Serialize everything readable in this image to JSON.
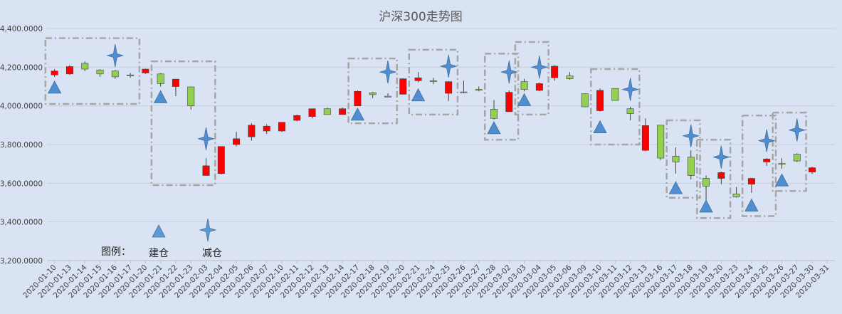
{
  "chart_data": {
    "type": "candlestick",
    "title": "沪深300走势图",
    "xlabel": "",
    "ylabel": "",
    "ylim": [
      3200,
      4400
    ],
    "yticks": [
      3200,
      3400,
      3600,
      3800,
      4000,
      4200,
      4400
    ],
    "ytick_labels": [
      "3,200.0000",
      "3,400.0000",
      "3,600.0000",
      "3,800.0000",
      "4,000.0000",
      "4,200.0000",
      "4,400.0000"
    ],
    "grid": true,
    "legend": {
      "position": "bottom-left",
      "title": "图例：",
      "entries": [
        {
          "label": "建仓",
          "marker": "triangle"
        },
        {
          "label": "减仓",
          "marker": "four-point-star"
        }
      ]
    },
    "colors": {
      "up": "#ff0000",
      "down": "#92d050",
      "marker": "#4f8ed1",
      "box": "#a6a6a6"
    },
    "candles": [
      {
        "date": "2020-01-10",
        "open": 4160,
        "close": 4180,
        "high": 4190,
        "low": 4150
      },
      {
        "date": "2020-01-13",
        "open": 4165,
        "close": 4203,
        "high": 4210,
        "low": 4160
      },
      {
        "date": "2020-01-14",
        "open": 4220,
        "close": 4190,
        "high": 4230,
        "low": 4180
      },
      {
        "date": "2020-01-15",
        "open": 4185,
        "close": 4165,
        "high": 4190,
        "low": 4150
      },
      {
        "date": "2020-01-16",
        "open": 4180,
        "close": 4150,
        "high": 4185,
        "low": 4140
      },
      {
        "date": "2020-01-17",
        "open": 4160,
        "close": 4155,
        "high": 4170,
        "low": 4145
      },
      {
        "date": "2020-01-20",
        "open": 4170,
        "close": 4190,
        "high": 4192,
        "low": 4165
      },
      {
        "date": "2020-01-21",
        "open": 4165,
        "close": 4115,
        "high": 4170,
        "low": 4100
      },
      {
        "date": "2020-01-22",
        "open": 4100,
        "close": 4138,
        "high": 4140,
        "low": 4050
      },
      {
        "date": "2020-01-23",
        "open": 4098,
        "close": 4000,
        "high": 4100,
        "low": 3980
      },
      {
        "date": "2020-02-03",
        "open": 3640,
        "close": 3690,
        "high": 3730,
        "low": 3640
      },
      {
        "date": "2020-02-04",
        "open": 3650,
        "close": 3790,
        "high": 3790,
        "low": 3645
      },
      {
        "date": "2020-02-05",
        "open": 3800,
        "close": 3830,
        "high": 3865,
        "low": 3790
      },
      {
        "date": "2020-02-06",
        "open": 3840,
        "close": 3900,
        "high": 3910,
        "low": 3820
      },
      {
        "date": "2020-02-07",
        "open": 3870,
        "close": 3895,
        "high": 3905,
        "low": 3855
      },
      {
        "date": "2020-02-10",
        "open": 3870,
        "close": 3915,
        "high": 3915,
        "low": 3865
      },
      {
        "date": "2020-02-11",
        "open": 3925,
        "close": 3950,
        "high": 3955,
        "low": 3920
      },
      {
        "date": "2020-02-12",
        "open": 3945,
        "close": 3985,
        "high": 3985,
        "low": 3935
      },
      {
        "date": "2020-02-13",
        "open": 3985,
        "close": 3955,
        "high": 3990,
        "low": 3955
      },
      {
        "date": "2020-02-14",
        "open": 3955,
        "close": 3985,
        "high": 3992,
        "low": 3955
      },
      {
        "date": "2020-02-17",
        "open": 4000,
        "close": 4075,
        "high": 4080,
        "low": 4000
      },
      {
        "date": "2020-02-18",
        "open": 4068,
        "close": 4058,
        "high": 4072,
        "low": 4040
      },
      {
        "date": "2020-02-19",
        "open": 4050,
        "close": 4048,
        "high": 4065,
        "low": 4045
      },
      {
        "date": "2020-02-20",
        "open": 4060,
        "close": 4140,
        "high": 4142,
        "low": 4060
      },
      {
        "date": "2020-02-21",
        "open": 4130,
        "close": 4145,
        "high": 4175,
        "low": 4122
      },
      {
        "date": "2020-02-24",
        "open": 4130,
        "close": 4128,
        "high": 4145,
        "low": 4112
      },
      {
        "date": "2020-02-25",
        "open": 4065,
        "close": 4125,
        "high": 4128,
        "low": 4025
      },
      {
        "date": "2020-02-26",
        "open": 4072,
        "close": 4070,
        "high": 4130,
        "low": 4065
      },
      {
        "date": "2020-02-27",
        "open": 4085,
        "close": 4083,
        "high": 4100,
        "low": 4075
      },
      {
        "date": "2020-02-28",
        "open": 3983,
        "close": 3935,
        "high": 4030,
        "low": 3930
      },
      {
        "date": "2020-03-02",
        "open": 3970,
        "close": 4070,
        "high": 4080,
        "low": 3968
      },
      {
        "date": "2020-03-03",
        "open": 4125,
        "close": 4085,
        "high": 4140,
        "low": 4075
      },
      {
        "date": "2020-03-04",
        "open": 4080,
        "close": 4115,
        "high": 4120,
        "low": 4075
      },
      {
        "date": "2020-03-05",
        "open": 4145,
        "close": 4205,
        "high": 4210,
        "low": 4130
      },
      {
        "date": "2020-03-06",
        "open": 4155,
        "close": 4140,
        "high": 4175,
        "low": 4135
      },
      {
        "date": "2020-03-09",
        "open": 4063,
        "close": 3995,
        "high": 4064,
        "low": 3993
      },
      {
        "date": "2020-03-10",
        "open": 3975,
        "close": 4080,
        "high": 4090,
        "low": 3970
      },
      {
        "date": "2020-03-11",
        "open": 4090,
        "close": 4028,
        "high": 4091,
        "low": 4027
      },
      {
        "date": "2020-03-12",
        "open": 3985,
        "close": 3960,
        "high": 3995,
        "low": 3925
      },
      {
        "date": "2020-03-13",
        "open": 3770,
        "close": 3898,
        "high": 3935,
        "low": 3765
      },
      {
        "date": "2020-03-16",
        "open": 3900,
        "close": 3730,
        "high": 3900,
        "low": 3720
      },
      {
        "date": "2020-03-17",
        "open": 3740,
        "close": 3710,
        "high": 3785,
        "low": 3650
      },
      {
        "date": "2020-03-18",
        "open": 3735,
        "close": 3640,
        "high": 3770,
        "low": 3620
      },
      {
        "date": "2020-03-19",
        "open": 3625,
        "close": 3585,
        "high": 3640,
        "low": 3500
      },
      {
        "date": "2020-03-20",
        "open": 3625,
        "close": 3655,
        "high": 3660,
        "low": 3595
      },
      {
        "date": "2020-03-23",
        "open": 3545,
        "close": 3530,
        "high": 3580,
        "low": 3525
      },
      {
        "date": "2020-03-24",
        "open": 3595,
        "close": 3625,
        "high": 3628,
        "low": 3550
      },
      {
        "date": "2020-03-25",
        "open": 3710,
        "close": 3725,
        "high": 3730,
        "low": 3690
      },
      {
        "date": "2020-03-26",
        "open": 3702,
        "close": 3698,
        "high": 3730,
        "low": 3675
      },
      {
        "date": "2020-03-27",
        "open": 3750,
        "close": 3715,
        "high": 3755,
        "low": 3710
      },
      {
        "date": "2020-03-30",
        "open": 3658,
        "close": 3680,
        "high": 3685,
        "low": 3648
      },
      {
        "date": "2020-03-31",
        "open": null,
        "close": null,
        "high": null,
        "low": null
      }
    ],
    "build_markers": [
      {
        "date": "2020-01-10",
        "value": 4095
      },
      {
        "date": "2020-01-21",
        "value": 4045
      },
      {
        "date": "2020-02-17",
        "value": 3955
      },
      {
        "date": "2020-02-21",
        "value": 4055
      },
      {
        "date": "2020-02-28",
        "value": 3885
      },
      {
        "date": "2020-03-03",
        "value": 4030
      },
      {
        "date": "2020-03-10",
        "value": 3890
      },
      {
        "date": "2020-03-17",
        "value": 3575
      },
      {
        "date": "2020-03-19",
        "value": 3480
      },
      {
        "date": "2020-03-24",
        "value": 3485
      },
      {
        "date": "2020-03-26",
        "value": 3615
      }
    ],
    "reduce_markers": [
      {
        "date": "2020-01-16",
        "value": 4260
      },
      {
        "date": "2020-02-03",
        "value": 3830
      },
      {
        "date": "2020-02-19",
        "value": 4175
      },
      {
        "date": "2020-02-25",
        "value": 4205
      },
      {
        "date": "2020-03-02",
        "value": 4175
      },
      {
        "date": "2020-03-04",
        "value": 4200
      },
      {
        "date": "2020-03-12",
        "value": 4085
      },
      {
        "date": "2020-03-18",
        "value": 3845
      },
      {
        "date": "2020-03-20",
        "value": 3735
      },
      {
        "date": "2020-03-25",
        "value": 3820
      },
      {
        "date": "2020-03-27",
        "value": 3875
      }
    ],
    "boxes": [
      {
        "from": "2020-01-10",
        "to": "2020-01-17",
        "top": 4350,
        "bottom": 4010
      },
      {
        "from": "2020-01-21",
        "to": "2020-02-03",
        "top": 4230,
        "bottom": 3590
      },
      {
        "from": "2020-02-17",
        "to": "2020-02-19",
        "top": 4245,
        "bottom": 3910
      },
      {
        "from": "2020-02-21",
        "to": "2020-02-25",
        "top": 4290,
        "bottom": 3955
      },
      {
        "from": "2020-02-28",
        "to": "2020-03-02",
        "top": 4270,
        "bottom": 3825
      },
      {
        "from": "2020-03-03",
        "to": "2020-03-04",
        "top": 4330,
        "bottom": 3955
      },
      {
        "from": "2020-03-10",
        "to": "2020-03-12",
        "top": 4190,
        "bottom": 3800
      },
      {
        "from": "2020-03-17",
        "to": "2020-03-18",
        "top": 3925,
        "bottom": 3525
      },
      {
        "from": "2020-03-19",
        "to": "2020-03-20",
        "top": 3825,
        "bottom": 3420
      },
      {
        "from": "2020-03-24",
        "to": "2020-03-25",
        "top": 3950,
        "bottom": 3430
      },
      {
        "from": "2020-03-26",
        "to": "2020-03-27",
        "top": 3965,
        "bottom": 3560
      }
    ]
  }
}
